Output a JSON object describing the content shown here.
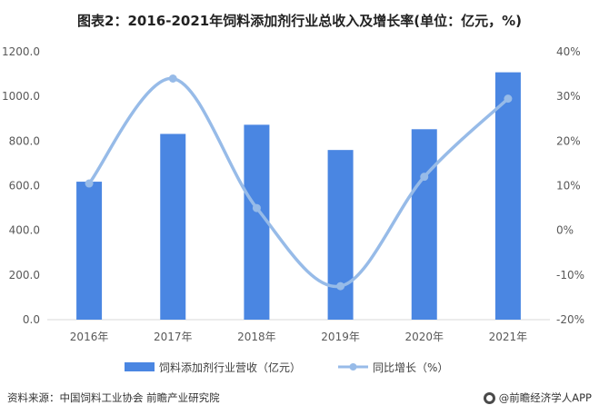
{
  "title": "图表2：2016-2021年饲料添加剂行业总收入及增长率(单位：亿元，%)",
  "footer": {
    "source": "资料来源：中国饲料工业协会 前瞻产业研究院",
    "brand": "@前瞻经济学人APP"
  },
  "chart_data": {
    "type": "bar",
    "categories": [
      "2016年",
      "2017年",
      "2018年",
      "2019年",
      "2020年",
      "2021年"
    ],
    "series": [
      {
        "name": "饲料添加剂行业营收（亿元）",
        "type": "bar",
        "axis": "left",
        "color": "#4a86e2",
        "values": [
          618,
          832,
          873,
          760,
          853,
          1108
        ]
      },
      {
        "name": "同比增长（%）",
        "type": "line",
        "axis": "right",
        "color": "#97bbe8",
        "values": [
          10.5,
          34,
          5,
          -12.5,
          12,
          29.5
        ]
      }
    ],
    "y_left": {
      "min": 0,
      "max": 1200,
      "step": 200,
      "tick_labels": [
        "0.0",
        "200.0",
        "400.0",
        "600.0",
        "800.0",
        "1000.0",
        "1200.0"
      ]
    },
    "y_right": {
      "min": -20,
      "max": 40,
      "step": 10,
      "tick_labels": [
        "-20%",
        "-10%",
        "0%",
        "10%",
        "20%",
        "30%",
        "40%"
      ]
    },
    "legend_position": "bottom",
    "grid": false
  }
}
